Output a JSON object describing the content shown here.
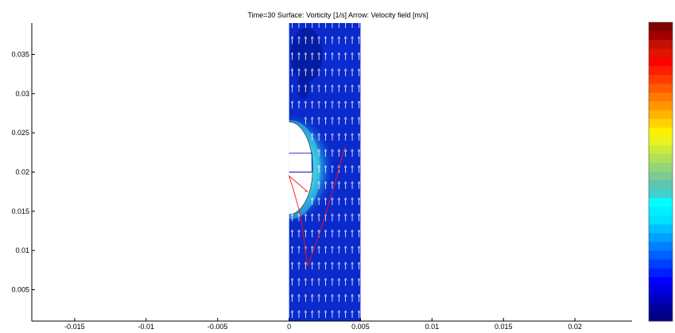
{
  "chart_data": {
    "type": "heatmap",
    "title": "Time=30    Surface: Vorticity [1/s]   Arrow: Velocity field [m/s]",
    "xlabel": "",
    "ylabel": "",
    "xlim": [
      -0.018,
      0.024
    ],
    "ylim": [
      0.001,
      0.039
    ],
    "x_ticks": [
      -0.015,
      -0.01,
      -0.005,
      0,
      0.005,
      0.01,
      0.015,
      0.02
    ],
    "x_tick_labels": [
      "-0.015",
      "-0.01",
      "-0.005",
      "0",
      "0.005",
      "0.01",
      "0.015",
      "0.02"
    ],
    "y_ticks": [
      0.005,
      0.01,
      0.015,
      0.02,
      0.025,
      0.03,
      0.035
    ],
    "y_tick_labels": [
      "0.005",
      "0.01",
      "0.015",
      "0.02",
      "0.025",
      "0.03",
      "0.035"
    ],
    "domain": {
      "x": [
        0,
        0.005
      ],
      "y": [
        0.001,
        0.039
      ]
    },
    "bubble": {
      "center_x": 0,
      "center_y": 0.0205,
      "radius_x": 0.00165,
      "radius_y": 0.0059
    },
    "colormap": "jet",
    "colors": {
      "background": "#0a2acc",
      "dark": "#021a9a",
      "glow_cyan": "#3fd0e0",
      "glow_green": "#8fd88f",
      "arrow": "#ffffff",
      "red_curve": "#ff1010",
      "blue_curve": "#1010c0"
    }
  },
  "colorbar": {
    "colors": [
      "#800000",
      "#a00000",
      "#c41000",
      "#e01400",
      "#ff0000",
      "#ff1e00",
      "#ff3c00",
      "#ff5a00",
      "#ff7800",
      "#ff9600",
      "#ffb400",
      "#ffd200",
      "#fff000",
      "#e8f41c",
      "#ccea3a",
      "#b0e058",
      "#94d676",
      "#78cc94",
      "#5cc6b2",
      "#40d0d0",
      "#00ffff",
      "#00f0ff",
      "#00e0ff",
      "#00c0ff",
      "#00a0ff",
      "#0080ff",
      "#0060ff",
      "#0040ff",
      "#0020ff",
      "#0000ff",
      "#0000e0",
      "#0000c0",
      "#0000a0",
      "#000080"
    ]
  }
}
